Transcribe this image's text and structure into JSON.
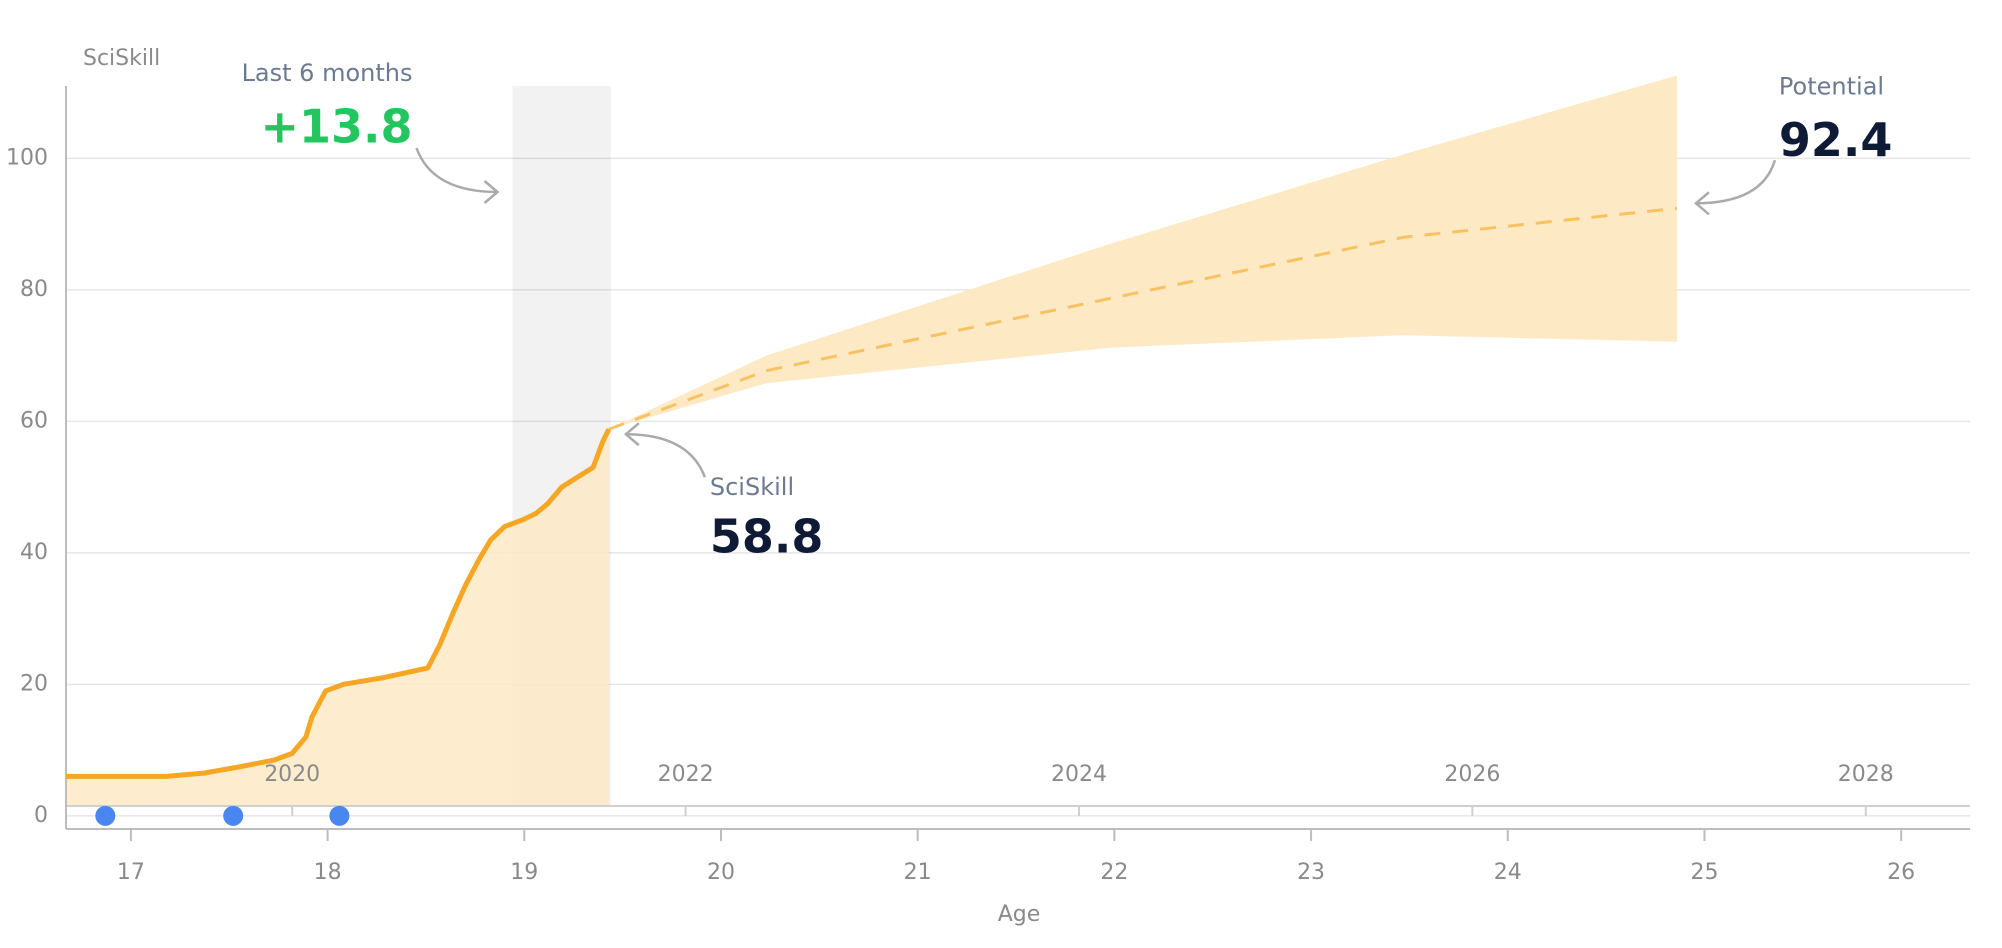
{
  "chart_data": {
    "type": "line",
    "y_axis_title": "SciSkill",
    "x_label": "Age",
    "x": [
      16.67,
      16.98,
      17.18,
      17.37,
      17.56,
      17.73,
      17.82,
      17.89,
      17.92,
      17.99,
      18.08,
      18.28,
      18.51,
      18.57,
      18.64,
      18.7,
      18.77,
      18.83,
      18.9,
      18.99,
      19.06,
      19.12,
      19.19,
      19.35,
      19.4,
      19.43
    ],
    "values": [
      6,
      6,
      6,
      6.5,
      7.5,
      8.5,
      9.5,
      12,
      15,
      19,
      20,
      21,
      22.5,
      26,
      31,
      35,
      39,
      42,
      44,
      45,
      46,
      47.5,
      50,
      53,
      57,
      58.8
    ],
    "color": "#f5a623",
    "forecast": {
      "x": [
        19.43,
        20.23,
        21.98,
        23.47,
        24.86
      ],
      "mean": [
        58.8,
        67.7,
        78.7,
        88,
        92.4
      ],
      "upper": [
        58.8,
        70,
        87,
        100.6,
        112.6
      ],
      "lower": [
        58.8,
        65.8,
        71.2,
        73.1,
        72.1
      ],
      "color": "#f8c263",
      "band_color": "#fde9c4"
    },
    "highlight": {
      "x_range": [
        18.94,
        19.44
      ],
      "label": "Last 6 months",
      "change": "+13.8",
      "change_color": "#22c55e"
    },
    "current": {
      "label": "SciSkill",
      "value": 58.8
    },
    "potential": {
      "label": "Potential",
      "value": 92.4
    },
    "events": {
      "x": [
        16.87,
        17.52,
        18.06
      ],
      "color": "#4a86f0"
    },
    "xlim": [
      16.67,
      26.35
    ],
    "xticks": [
      17,
      18,
      19,
      20,
      21,
      22,
      23,
      24,
      25,
      26
    ],
    "year_ticks": [
      {
        "value": 17.82,
        "label": "2020"
      },
      {
        "value": 19.82,
        "label": "2022"
      },
      {
        "value": 21.82,
        "label": "2024"
      },
      {
        "value": 23.82,
        "label": "2026"
      },
      {
        "value": 25.82,
        "label": "2028"
      }
    ],
    "ylim": [
      -2,
      111
    ],
    "yticks": [
      0,
      20,
      40,
      60,
      80,
      100
    ],
    "grid": true
  }
}
